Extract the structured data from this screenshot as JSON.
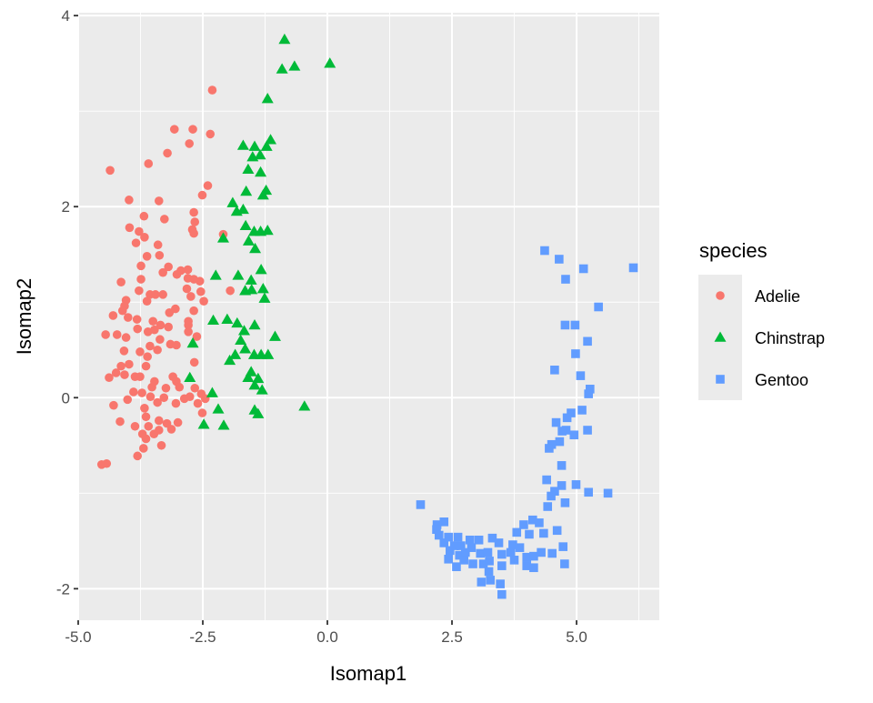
{
  "chart_data": {
    "type": "scatter",
    "xlabel": "Isomap1",
    "ylabel": "Isomap2",
    "xlim": [
      -5.0,
      6.66
    ],
    "ylim": [
      -2.33,
      4.03
    ],
    "x_ticks": [
      -5.0,
      -2.5,
      0.0,
      2.5,
      5.0
    ],
    "x_tick_labels": [
      "-5.0",
      "-2.5",
      "0.0",
      "2.5",
      "5.0"
    ],
    "y_ticks": [
      -2,
      0,
      2,
      4
    ],
    "y_tick_labels": [
      "-2",
      "0",
      "2",
      "4"
    ],
    "grid": true,
    "legend": {
      "title": "species",
      "position": "right"
    },
    "series": [
      {
        "name": "Adelie",
        "color": "#F8766D",
        "shape": "circle",
        "points": [
          [
            -2.31,
            3.22
          ],
          [
            -3.07,
            2.81
          ],
          [
            -2.7,
            2.81
          ],
          [
            -2.35,
            2.76
          ],
          [
            -2.77,
            2.66
          ],
          [
            -3.21,
            2.56
          ],
          [
            -3.59,
            2.45
          ],
          [
            -4.36,
            2.38
          ],
          [
            -2.4,
            2.22
          ],
          [
            -2.51,
            2.12
          ],
          [
            -3.98,
            2.07
          ],
          [
            -3.38,
            2.06
          ],
          [
            -3.68,
            1.9
          ],
          [
            -3.27,
            1.87
          ],
          [
            -2.68,
            1.94
          ],
          [
            -2.66,
            1.84
          ],
          [
            -2.71,
            1.76
          ],
          [
            -2.68,
            1.72
          ],
          [
            -2.09,
            1.71
          ],
          [
            -3.97,
            1.78
          ],
          [
            -3.78,
            1.74
          ],
          [
            -3.67,
            1.68
          ],
          [
            -3.84,
            1.62
          ],
          [
            -3.4,
            1.6
          ],
          [
            -3.37,
            1.49
          ],
          [
            -3.62,
            1.48
          ],
          [
            -3.74,
            1.38
          ],
          [
            -3.19,
            1.37
          ],
          [
            -3.3,
            1.31
          ],
          [
            -3.02,
            1.29
          ],
          [
            -2.94,
            1.33
          ],
          [
            -2.8,
            1.34
          ],
          [
            -2.8,
            1.25
          ],
          [
            -2.68,
            1.24
          ],
          [
            -2.56,
            1.22
          ],
          [
            -3.74,
            1.24
          ],
          [
            -4.14,
            1.21
          ],
          [
            -3.78,
            1.12
          ],
          [
            -2.82,
            1.14
          ],
          [
            -2.54,
            1.11
          ],
          [
            -1.95,
            1.12
          ],
          [
            -3.56,
            1.08
          ],
          [
            -3.3,
            1.08
          ],
          [
            -3.45,
            1.08
          ],
          [
            -2.74,
            1.06
          ],
          [
            -3.62,
            1.01
          ],
          [
            -2.48,
            1.01
          ],
          [
            -4.04,
            1.02
          ],
          [
            -4.07,
            0.96
          ],
          [
            -4.11,
            0.91
          ],
          [
            -3.05,
            0.93
          ],
          [
            -3.17,
            0.89
          ],
          [
            -2.68,
            0.91
          ],
          [
            -4.3,
            0.86
          ],
          [
            -4.0,
            0.84
          ],
          [
            -3.82,
            0.82
          ],
          [
            -3.5,
            0.8
          ],
          [
            -2.79,
            0.8
          ],
          [
            -2.79,
            0.76
          ],
          [
            -3.35,
            0.76
          ],
          [
            -3.19,
            0.74
          ],
          [
            -3.81,
            0.72
          ],
          [
            -3.6,
            0.69
          ],
          [
            -3.47,
            0.71
          ],
          [
            -2.79,
            0.69
          ],
          [
            -4.45,
            0.66
          ],
          [
            -4.22,
            0.66
          ],
          [
            -4.04,
            0.63
          ],
          [
            -2.62,
            0.64
          ],
          [
            -3.36,
            0.61
          ],
          [
            -3.15,
            0.56
          ],
          [
            -3.03,
            0.55
          ],
          [
            -3.56,
            0.54
          ],
          [
            -3.41,
            0.5
          ],
          [
            -4.08,
            0.49
          ],
          [
            -3.76,
            0.48
          ],
          [
            -3.61,
            0.43
          ],
          [
            -2.67,
            0.37
          ],
          [
            -3.98,
            0.35
          ],
          [
            -4.14,
            0.33
          ],
          [
            -3.64,
            0.33
          ],
          [
            -4.24,
            0.26
          ],
          [
            -4.07,
            0.24
          ],
          [
            -4.38,
            0.21
          ],
          [
            -3.86,
            0.22
          ],
          [
            -3.76,
            0.22
          ],
          [
            -3.1,
            0.22
          ],
          [
            -3.47,
            0.17
          ],
          [
            -3.03,
            0.17
          ],
          [
            -3.52,
            0.11
          ],
          [
            -3.24,
            0.1
          ],
          [
            -2.97,
            0.11
          ],
          [
            -2.66,
            0.1
          ],
          [
            -3.89,
            0.06
          ],
          [
            -3.72,
            0.05
          ],
          [
            -3.55,
            0.01
          ],
          [
            -3.28,
            0.0
          ],
          [
            -2.87,
            -0.01
          ],
          [
            -2.76,
            0.01
          ],
          [
            -2.53,
            0.04
          ],
          [
            -2.45,
            -0.01
          ],
          [
            -4.01,
            -0.02
          ],
          [
            -3.41,
            -0.05
          ],
          [
            -3.04,
            -0.06
          ],
          [
            -2.6,
            -0.06
          ],
          [
            -4.29,
            -0.08
          ],
          [
            -3.67,
            -0.11
          ],
          [
            -2.51,
            -0.16
          ],
          [
            -3.64,
            -0.2
          ],
          [
            -4.16,
            -0.25
          ],
          [
            -3.38,
            -0.24
          ],
          [
            -3.0,
            -0.26
          ],
          [
            -3.22,
            -0.27
          ],
          [
            -3.86,
            -0.3
          ],
          [
            -3.59,
            -0.3
          ],
          [
            -3.13,
            -0.33
          ],
          [
            -3.38,
            -0.34
          ],
          [
            -3.71,
            -0.38
          ],
          [
            -3.48,
            -0.38
          ],
          [
            -3.64,
            -0.43
          ],
          [
            -3.33,
            -0.5
          ],
          [
            -3.69,
            -0.53
          ],
          [
            -3.81,
            -0.61
          ],
          [
            -4.53,
            -0.7
          ],
          [
            -4.43,
            -0.69
          ]
        ]
      },
      {
        "name": "Chinstrap",
        "color": "#00BA38",
        "shape": "triangle",
        "points": [
          [
            -0.86,
            3.75
          ],
          [
            -0.91,
            3.44
          ],
          [
            -0.66,
            3.47
          ],
          [
            0.05,
            3.5
          ],
          [
            -1.2,
            3.13
          ],
          [
            -1.69,
            2.64
          ],
          [
            -1.46,
            2.63
          ],
          [
            -1.22,
            2.63
          ],
          [
            -1.14,
            2.7
          ],
          [
            -1.5,
            2.52
          ],
          [
            -1.35,
            2.54
          ],
          [
            -1.59,
            2.39
          ],
          [
            -1.34,
            2.36
          ],
          [
            -1.63,
            2.16
          ],
          [
            -1.23,
            2.17
          ],
          [
            -1.29,
            2.12
          ],
          [
            -1.9,
            2.04
          ],
          [
            -1.82,
            1.95
          ],
          [
            -1.69,
            1.97
          ],
          [
            -1.64,
            1.8
          ],
          [
            -1.47,
            1.74
          ],
          [
            -1.34,
            1.74
          ],
          [
            -1.2,
            1.75
          ],
          [
            -2.09,
            1.67
          ],
          [
            -1.58,
            1.64
          ],
          [
            -1.45,
            1.56
          ],
          [
            -1.33,
            1.34
          ],
          [
            -2.24,
            1.28
          ],
          [
            -1.79,
            1.28
          ],
          [
            -1.53,
            1.23
          ],
          [
            -1.65,
            1.12
          ],
          [
            -1.52,
            1.13
          ],
          [
            -1.29,
            1.14
          ],
          [
            -1.26,
            1.04
          ],
          [
            -2.29,
            0.81
          ],
          [
            -2.01,
            0.82
          ],
          [
            -1.81,
            0.78
          ],
          [
            -1.46,
            0.76
          ],
          [
            -1.67,
            0.7
          ],
          [
            -1.05,
            0.64
          ],
          [
            -1.74,
            0.6
          ],
          [
            -2.7,
            0.57
          ],
          [
            -1.65,
            0.51
          ],
          [
            -1.85,
            0.45
          ],
          [
            -1.96,
            0.39
          ],
          [
            -1.47,
            0.45
          ],
          [
            -1.33,
            0.45
          ],
          [
            -1.19,
            0.45
          ],
          [
            -1.53,
            0.27
          ],
          [
            -1.59,
            0.21
          ],
          [
            -2.76,
            0.21
          ],
          [
            -1.39,
            0.2
          ],
          [
            -1.46,
            0.13
          ],
          [
            -1.31,
            0.08
          ],
          [
            -2.31,
            0.05
          ],
          [
            -2.19,
            -0.12
          ],
          [
            -0.46,
            -0.09
          ],
          [
            -1.46,
            -0.13
          ],
          [
            -1.39,
            -0.17
          ],
          [
            -2.48,
            -0.28
          ],
          [
            -2.08,
            -0.29
          ]
        ]
      },
      {
        "name": "Gentoo",
        "color": "#619CFF",
        "shape": "square",
        "points": [
          [
            4.36,
            1.54
          ],
          [
            4.65,
            1.45
          ],
          [
            5.14,
            1.35
          ],
          [
            6.14,
            1.36
          ],
          [
            4.78,
            1.24
          ],
          [
            5.44,
            0.95
          ],
          [
            4.77,
            0.76
          ],
          [
            4.97,
            0.76
          ],
          [
            5.22,
            0.59
          ],
          [
            4.98,
            0.46
          ],
          [
            4.56,
            0.29
          ],
          [
            5.08,
            0.23
          ],
          [
            5.27,
            0.09
          ],
          [
            5.24,
            0.04
          ],
          [
            5.11,
            -0.13
          ],
          [
            4.89,
            -0.16
          ],
          [
            4.81,
            -0.21
          ],
          [
            4.59,
            -0.26
          ],
          [
            4.79,
            -0.34
          ],
          [
            4.71,
            -0.35
          ],
          [
            5.22,
            -0.34
          ],
          [
            4.95,
            -0.39
          ],
          [
            4.66,
            -0.46
          ],
          [
            4.5,
            -0.49
          ],
          [
            4.45,
            -0.53
          ],
          [
            4.7,
            -0.71
          ],
          [
            4.4,
            -0.86
          ],
          [
            4.7,
            -0.92
          ],
          [
            4.99,
            -0.91
          ],
          [
            5.24,
            -0.99
          ],
          [
            5.63,
            -1.0
          ],
          [
            4.56,
            -0.98
          ],
          [
            1.87,
            -1.12
          ],
          [
            4.49,
            -1.03
          ],
          [
            4.77,
            -1.1
          ],
          [
            4.42,
            -1.14
          ],
          [
            2.34,
            -1.3
          ],
          [
            2.2,
            -1.33
          ],
          [
            2.19,
            -1.38
          ],
          [
            2.24,
            -1.44
          ],
          [
            2.34,
            -1.52
          ],
          [
            2.43,
            -1.46
          ],
          [
            2.46,
            -1.6
          ],
          [
            2.43,
            -1.69
          ],
          [
            2.59,
            -1.77
          ],
          [
            2.62,
            -1.46
          ],
          [
            2.68,
            -1.55
          ],
          [
            2.65,
            -1.65
          ],
          [
            2.77,
            -1.62
          ],
          [
            2.86,
            -1.49
          ],
          [
            2.92,
            -1.74
          ],
          [
            2.89,
            -1.57
          ],
          [
            3.04,
            -1.49
          ],
          [
            3.07,
            -1.63
          ],
          [
            3.13,
            -1.74
          ],
          [
            3.22,
            -1.62
          ],
          [
            3.25,
            -1.71
          ],
          [
            3.24,
            -1.82
          ],
          [
            3.27,
            -1.91
          ],
          [
            3.09,
            -1.93
          ],
          [
            3.47,
            -1.95
          ],
          [
            3.5,
            -2.06
          ],
          [
            3.31,
            -1.47
          ],
          [
            3.44,
            -1.52
          ],
          [
            3.5,
            -1.64
          ],
          [
            3.5,
            -1.76
          ],
          [
            3.68,
            -1.62
          ],
          [
            3.75,
            -1.7
          ],
          [
            3.72,
            -1.54
          ],
          [
            3.8,
            -1.41
          ],
          [
            3.86,
            -1.57
          ],
          [
            3.94,
            -1.33
          ],
          [
            4.05,
            -1.43
          ],
          [
            4.12,
            -1.28
          ],
          [
            4.25,
            -1.31
          ],
          [
            4.34,
            -1.42
          ],
          [
            4.61,
            -1.39
          ],
          [
            4.0,
            -1.67
          ],
          [
            4.0,
            -1.76
          ],
          [
            4.14,
            -1.78
          ],
          [
            4.14,
            -1.66
          ],
          [
            4.29,
            -1.62
          ],
          [
            4.51,
            -1.63
          ],
          [
            4.73,
            -1.56
          ],
          [
            4.76,
            -1.74
          ],
          [
            2.74,
            -1.7
          ],
          [
            2.55,
            -1.55
          ]
        ]
      }
    ]
  }
}
